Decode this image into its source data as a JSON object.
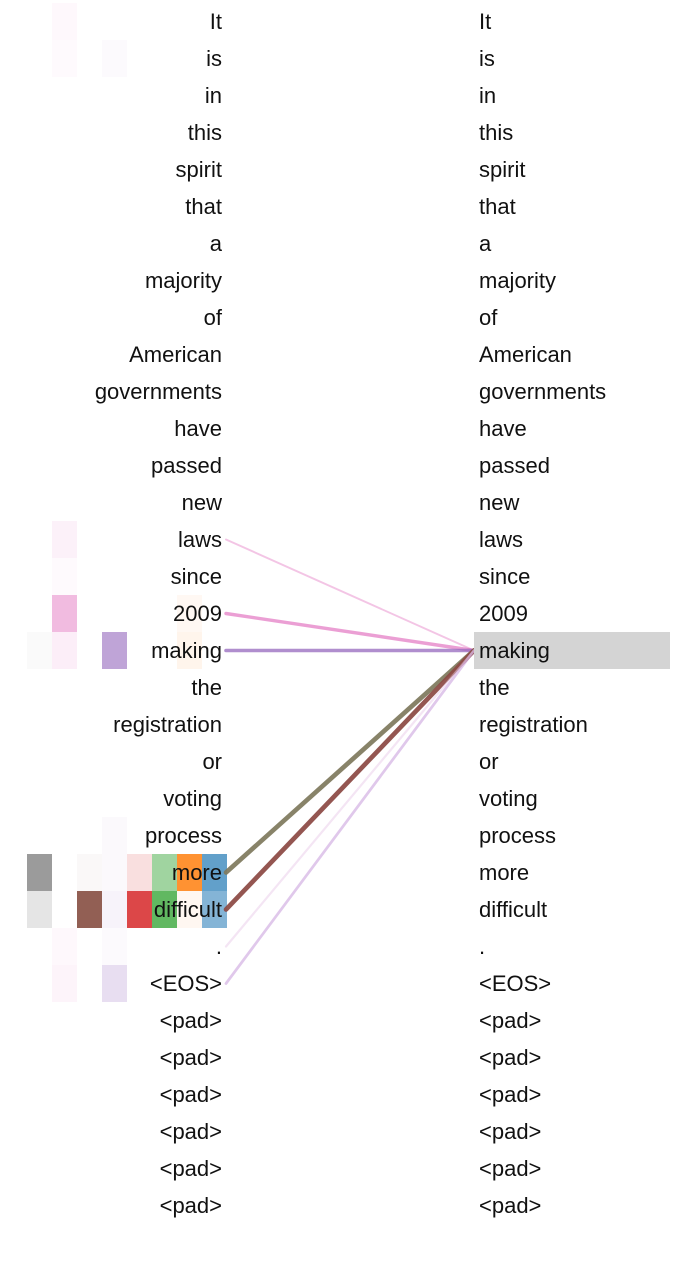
{
  "tokens": [
    "It",
    "is",
    "in",
    "this",
    "spirit",
    "that",
    "a",
    "majority",
    "of",
    "American",
    "governments",
    "have",
    "passed",
    "new",
    "laws",
    "since",
    "2009",
    "making",
    "the",
    "registration",
    "or",
    "voting",
    "process",
    "more",
    "difficult",
    ".",
    "<EOS>",
    "<pad>",
    "<pad>",
    "<pad>",
    "<pad>",
    "<pad>",
    "<pad>"
  ],
  "focus_index": 17,
  "heads": [
    "#7f7f7f",
    "#e377c2",
    "#8c564b",
    "#9467bd",
    "#d62728",
    "#2ca02c",
    "#ff7f0e",
    "#1f77b4"
  ],
  "heatmap": [
    [
      0,
      0.05,
      0,
      0,
      0,
      0,
      0,
      0
    ],
    [
      0,
      0.04,
      0,
      0.03,
      0,
      0,
      0,
      0
    ],
    [
      0,
      0,
      0,
      0,
      0,
      0,
      0,
      0
    ],
    [
      0,
      0,
      0,
      0,
      0,
      0,
      0,
      0
    ],
    [
      0,
      0,
      0,
      0,
      0,
      0,
      0,
      0
    ],
    [
      0,
      0,
      0,
      0,
      0,
      0,
      0,
      0
    ],
    [
      0,
      0,
      0,
      0,
      0,
      0,
      0,
      0
    ],
    [
      0,
      0,
      0,
      0,
      0,
      0,
      0,
      0
    ],
    [
      0,
      0,
      0,
      0,
      0,
      0,
      0,
      0
    ],
    [
      0,
      0,
      0,
      0,
      0,
      0,
      0,
      0
    ],
    [
      0,
      0,
      0,
      0,
      0,
      0,
      0,
      0
    ],
    [
      0,
      0,
      0,
      0,
      0,
      0,
      0,
      0
    ],
    [
      0,
      0,
      0,
      0,
      0,
      0,
      0,
      0
    ],
    [
      0,
      0,
      0,
      0,
      0,
      0,
      0,
      0
    ],
    [
      0,
      0.1,
      0,
      0,
      0,
      0,
      0,
      0
    ],
    [
      0,
      0.04,
      0,
      0,
      0,
      0,
      0,
      0
    ],
    [
      0,
      0.5,
      0,
      0,
      0,
      0,
      0.05,
      0
    ],
    [
      0.04,
      0.12,
      0,
      0.6,
      0,
      0,
      0.08,
      0
    ],
    [
      0,
      0,
      0,
      0,
      0,
      0,
      0,
      0
    ],
    [
      0,
      0,
      0,
      0,
      0,
      0,
      0,
      0
    ],
    [
      0,
      0,
      0,
      0,
      0,
      0,
      0,
      0
    ],
    [
      0,
      0,
      0,
      0,
      0,
      0,
      0,
      0
    ],
    [
      0,
      0,
      0,
      0.04,
      0,
      0,
      0,
      0
    ],
    [
      0.78,
      0,
      0.04,
      0.04,
      0.15,
      0.45,
      0.85,
      0.7
    ],
    [
      0.2,
      0,
      0.95,
      0.08,
      0.85,
      0.75,
      0.06,
      0.55
    ],
    [
      0,
      0.05,
      0,
      0.03,
      0,
      0,
      0,
      0
    ],
    [
      0,
      0.08,
      0,
      0.22,
      0,
      0,
      0,
      0
    ],
    [
      0,
      0,
      0,
      0,
      0,
      0,
      0,
      0
    ],
    [
      0,
      0,
      0,
      0,
      0,
      0,
      0,
      0
    ],
    [
      0,
      0,
      0,
      0,
      0,
      0,
      0,
      0
    ],
    [
      0,
      0,
      0,
      0,
      0,
      0,
      0,
      0
    ],
    [
      0,
      0,
      0,
      0,
      0,
      0,
      0,
      0
    ],
    [
      0,
      0,
      0,
      0,
      0,
      0,
      0,
      0
    ]
  ],
  "links": [
    {
      "from": 14,
      "to": 17,
      "color": "#e377c2",
      "weight": 0.12
    },
    {
      "from": 16,
      "to": 17,
      "color": "#e377c2",
      "weight": 0.55
    },
    {
      "from": 17,
      "to": 17,
      "color": "#9467bd",
      "weight": 0.6
    },
    {
      "from": 23,
      "to": 17,
      "color": "#7f7a5e",
      "weight": 0.9
    },
    {
      "from": 24,
      "to": 17,
      "color": "#8c4a45",
      "weight": 0.9
    },
    {
      "from": 26,
      "to": 17,
      "color": "#c9a0dc",
      "weight": 0.35
    },
    {
      "from": 25,
      "to": 17,
      "color": "#e8c8e8",
      "weight": 0.2
    }
  ]
}
